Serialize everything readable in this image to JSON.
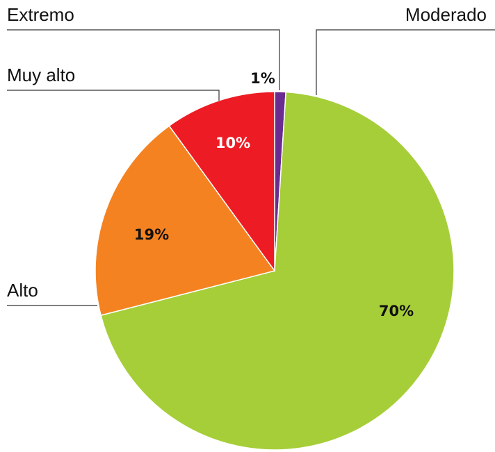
{
  "chart_data": {
    "type": "pie",
    "categories": [
      "Extremo",
      "Moderado",
      "Alto",
      "Muy alto"
    ],
    "values": [
      1,
      70,
      19,
      10
    ],
    "value_labels": [
      "1%",
      "70%",
      "19%",
      "10%"
    ],
    "colors": [
      "#6a2c91",
      "#a6ce39",
      "#f58220",
      "#ed1c24"
    ]
  }
}
